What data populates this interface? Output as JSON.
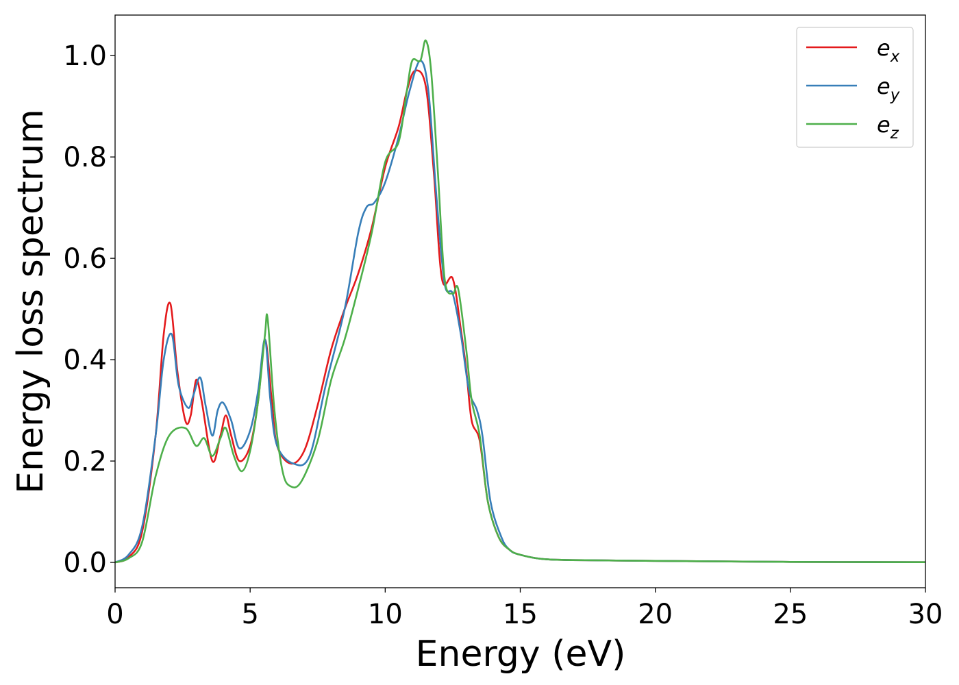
{
  "chart_data": {
    "type": "line",
    "xlabel": "Energy (eV)",
    "ylabel": "Energy loss spectrum",
    "xlim": [
      0,
      30
    ],
    "ylim": [
      -0.05,
      1.08
    ],
    "xticks": [
      0,
      5,
      10,
      15,
      20,
      25,
      30
    ],
    "yticks": [
      0.0,
      0.2,
      0.4,
      0.6,
      0.8,
      1.0
    ],
    "xtick_labels": [
      "0",
      "5",
      "10",
      "15",
      "20",
      "25",
      "30"
    ],
    "ytick_labels": [
      "0.0",
      "0.2",
      "0.4",
      "0.6",
      "0.8",
      "1.0"
    ],
    "grid": false,
    "legend_position": "top-right",
    "series": [
      {
        "name": "e",
        "subscript": "x",
        "color": "#e41a1c",
        "points": [
          [
            0,
            0
          ],
          [
            0.5,
            0.01
          ],
          [
            1,
            0.06
          ],
          [
            1.5,
            0.25
          ],
          [
            1.8,
            0.45
          ],
          [
            2.05,
            0.51
          ],
          [
            2.3,
            0.38
          ],
          [
            2.6,
            0.28
          ],
          [
            2.8,
            0.29
          ],
          [
            3.0,
            0.36
          ],
          [
            3.2,
            0.32
          ],
          [
            3.6,
            0.2
          ],
          [
            3.9,
            0.25
          ],
          [
            4.1,
            0.29
          ],
          [
            4.3,
            0.25
          ],
          [
            4.6,
            0.2
          ],
          [
            5.0,
            0.23
          ],
          [
            5.3,
            0.32
          ],
          [
            5.55,
            0.44
          ],
          [
            5.8,
            0.32
          ],
          [
            6.0,
            0.23
          ],
          [
            6.5,
            0.195
          ],
          [
            7.0,
            0.22
          ],
          [
            7.5,
            0.31
          ],
          [
            8.0,
            0.42
          ],
          [
            8.5,
            0.5
          ],
          [
            9.0,
            0.57
          ],
          [
            9.5,
            0.66
          ],
          [
            10.0,
            0.78
          ],
          [
            10.5,
            0.86
          ],
          [
            10.8,
            0.93
          ],
          [
            11.1,
            0.97
          ],
          [
            11.5,
            0.94
          ],
          [
            11.8,
            0.77
          ],
          [
            12.1,
            0.56
          ],
          [
            12.5,
            0.56
          ],
          [
            12.8,
            0.46
          ],
          [
            13.0,
            0.38
          ],
          [
            13.2,
            0.28
          ],
          [
            13.5,
            0.24
          ],
          [
            13.8,
            0.12
          ],
          [
            14.2,
            0.05
          ],
          [
            14.6,
            0.025
          ],
          [
            15,
            0.015
          ],
          [
            16,
            0.006
          ],
          [
            18,
            0.004
          ],
          [
            20,
            0.003
          ],
          [
            25,
            0.001
          ],
          [
            30,
            0.0005
          ]
        ]
      },
      {
        "name": "e",
        "subscript": "y",
        "color": "#377eb8",
        "points": [
          [
            0,
            0
          ],
          [
            0.5,
            0.015
          ],
          [
            1,
            0.07
          ],
          [
            1.5,
            0.25
          ],
          [
            1.8,
            0.4
          ],
          [
            2.1,
            0.45
          ],
          [
            2.35,
            0.35
          ],
          [
            2.7,
            0.305
          ],
          [
            2.9,
            0.33
          ],
          [
            3.15,
            0.365
          ],
          [
            3.35,
            0.31
          ],
          [
            3.6,
            0.25
          ],
          [
            3.8,
            0.3
          ],
          [
            4.0,
            0.315
          ],
          [
            4.3,
            0.28
          ],
          [
            4.6,
            0.225
          ],
          [
            5.0,
            0.26
          ],
          [
            5.3,
            0.34
          ],
          [
            5.55,
            0.44
          ],
          [
            5.75,
            0.32
          ],
          [
            6.0,
            0.23
          ],
          [
            6.6,
            0.195
          ],
          [
            7.2,
            0.21
          ],
          [
            7.8,
            0.35
          ],
          [
            8.5,
            0.5
          ],
          [
            9.0,
            0.65
          ],
          [
            9.3,
            0.7
          ],
          [
            9.6,
            0.71
          ],
          [
            10.0,
            0.75
          ],
          [
            10.5,
            0.84
          ],
          [
            10.9,
            0.93
          ],
          [
            11.3,
            0.99
          ],
          [
            11.6,
            0.93
          ],
          [
            11.9,
            0.72
          ],
          [
            12.2,
            0.55
          ],
          [
            12.5,
            0.53
          ],
          [
            12.8,
            0.45
          ],
          [
            13.1,
            0.34
          ],
          [
            13.4,
            0.3
          ],
          [
            13.6,
            0.25
          ],
          [
            13.9,
            0.12
          ],
          [
            14.3,
            0.05
          ],
          [
            14.6,
            0.025
          ],
          [
            15,
            0.015
          ],
          [
            16,
            0.006
          ],
          [
            18,
            0.004
          ],
          [
            20,
            0.003
          ],
          [
            25,
            0.001
          ],
          [
            30,
            0.0005
          ]
        ]
      },
      {
        "name": "e",
        "subscript": "z",
        "color": "#4daf4a",
        "points": [
          [
            0,
            0
          ],
          [
            0.5,
            0.008
          ],
          [
            1,
            0.04
          ],
          [
            1.5,
            0.17
          ],
          [
            2.0,
            0.25
          ],
          [
            2.6,
            0.265
          ],
          [
            3.0,
            0.23
          ],
          [
            3.3,
            0.245
          ],
          [
            3.6,
            0.21
          ],
          [
            3.9,
            0.245
          ],
          [
            4.1,
            0.265
          ],
          [
            4.4,
            0.21
          ],
          [
            4.7,
            0.18
          ],
          [
            5.0,
            0.22
          ],
          [
            5.3,
            0.32
          ],
          [
            5.55,
            0.45
          ],
          [
            5.65,
            0.48
          ],
          [
            5.9,
            0.3
          ],
          [
            6.2,
            0.18
          ],
          [
            6.5,
            0.15
          ],
          [
            6.9,
            0.16
          ],
          [
            7.5,
            0.24
          ],
          [
            8.0,
            0.36
          ],
          [
            8.5,
            0.44
          ],
          [
            9.0,
            0.54
          ],
          [
            9.5,
            0.65
          ],
          [
            10.0,
            0.79
          ],
          [
            10.5,
            0.83
          ],
          [
            10.8,
            0.93
          ],
          [
            11.0,
            0.99
          ],
          [
            11.3,
            0.99
          ],
          [
            11.5,
            1.03
          ],
          [
            11.7,
            0.97
          ],
          [
            11.95,
            0.77
          ],
          [
            12.2,
            0.56
          ],
          [
            12.5,
            0.53
          ],
          [
            12.7,
            0.54
          ],
          [
            13.0,
            0.42
          ],
          [
            13.2,
            0.32
          ],
          [
            13.5,
            0.25
          ],
          [
            13.8,
            0.12
          ],
          [
            14.2,
            0.05
          ],
          [
            14.6,
            0.025
          ],
          [
            15,
            0.015
          ],
          [
            16,
            0.006
          ],
          [
            18,
            0.004
          ],
          [
            20,
            0.003
          ],
          [
            25,
            0.001
          ],
          [
            30,
            0.0005
          ]
        ]
      }
    ]
  }
}
